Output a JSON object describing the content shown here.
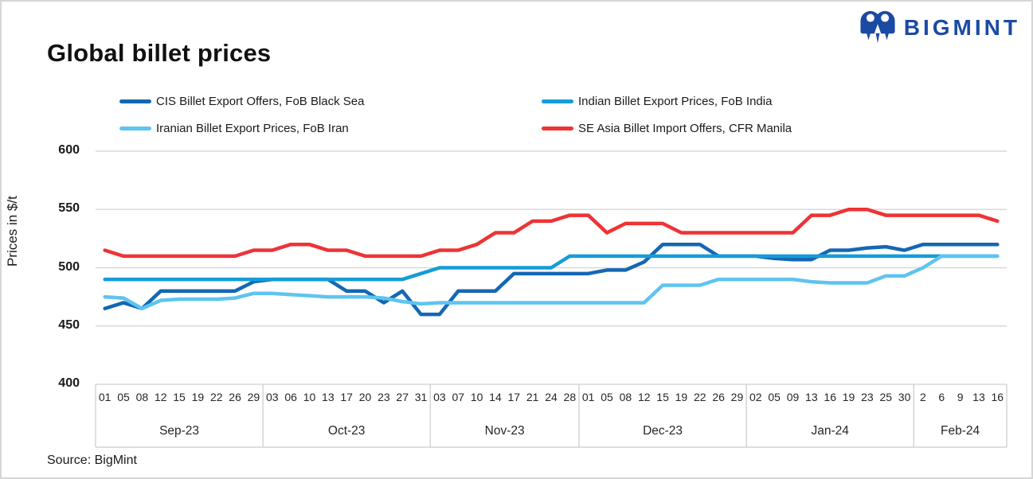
{
  "header": {
    "title": "Global billet prices",
    "logo_text": "BIGMINT"
  },
  "source": "Source: BigMint",
  "colors": {
    "logo_blue": "#1b4aa3",
    "grid": "#d9d9d9",
    "table_border": "#c9c9c9",
    "text": "#1a1a1a"
  },
  "chart_data": {
    "type": "line",
    "title": "Global billet prices",
    "ylabel": "Prices in $/t",
    "xlabel": "",
    "ylim": [
      400,
      600
    ],
    "y_ticks": [
      600,
      550,
      500,
      450,
      400
    ],
    "grid": "horizontal",
    "legend_position": "top",
    "x_groups": [
      {
        "label": "Sep-23",
        "days": [
          "01",
          "05",
          "08",
          "12",
          "15",
          "19",
          "22",
          "26",
          "29"
        ]
      },
      {
        "label": "Oct-23",
        "days": [
          "03",
          "06",
          "10",
          "13",
          "17",
          "20",
          "23",
          "27",
          "31"
        ]
      },
      {
        "label": "Nov-23",
        "days": [
          "03",
          "07",
          "10",
          "14",
          "17",
          "21",
          "24",
          "28"
        ]
      },
      {
        "label": "Dec-23",
        "days": [
          "01",
          "05",
          "08",
          "12",
          "15",
          "19",
          "22",
          "26",
          "29"
        ]
      },
      {
        "label": "Jan-24",
        "days": [
          "02",
          "05",
          "09",
          "13",
          "16",
          "19",
          "23",
          "25",
          "30"
        ]
      },
      {
        "label": "Feb-24",
        "days": [
          "2",
          "6",
          "9",
          "13",
          "16"
        ]
      }
    ],
    "series": [
      {
        "name": "CIS Billet Export Offers, FoB Black Sea",
        "color": "#1467b3",
        "values": [
          465,
          470,
          465,
          480,
          480,
          480,
          480,
          480,
          488,
          490,
          490,
          490,
          490,
          480,
          480,
          470,
          480,
          460,
          460,
          480,
          480,
          480,
          495,
          495,
          495,
          495,
          495,
          498,
          498,
          505,
          520,
          520,
          520,
          510,
          510,
          510,
          508,
          507,
          507,
          515,
          515,
          517,
          518,
          515,
          520,
          520,
          520,
          520,
          520
        ]
      },
      {
        "name": "Indian Billet Export Prices, FoB India",
        "color": "#169cd8",
        "values": [
          490,
          490,
          490,
          490,
          490,
          490,
          490,
          490,
          490,
          490,
          490,
          490,
          490,
          490,
          490,
          490,
          490,
          495,
          500,
          500,
          500,
          500,
          500,
          500,
          500,
          510,
          510,
          510,
          510,
          510,
          510,
          510,
          510,
          510,
          510,
          510,
          510,
          510,
          510,
          510,
          510,
          510,
          510,
          510,
          510,
          510,
          510,
          510,
          510
        ]
      },
      {
        "name": "Iranian Billet Export Prices, FoB Iran",
        "color": "#5ec4f0",
        "values": [
          475,
          474,
          465,
          472,
          473,
          473,
          473,
          474,
          478,
          478,
          477,
          476,
          475,
          475,
          475,
          474,
          471,
          469,
          470,
          470,
          470,
          470,
          470,
          470,
          470,
          470,
          470,
          470,
          470,
          470,
          485,
          485,
          485,
          490,
          490,
          490,
          490,
          490,
          488,
          487,
          487,
          487,
          493,
          493,
          500,
          510,
          510,
          510,
          510
        ]
      },
      {
        "name": "SE Asia Billet Import Offers, CFR Manila",
        "color": "#ee3335",
        "values": [
          515,
          510,
          510,
          510,
          510,
          510,
          510,
          510,
          515,
          515,
          520,
          520,
          515,
          515,
          510,
          510,
          510,
          510,
          515,
          515,
          520,
          530,
          530,
          540,
          540,
          545,
          545,
          530,
          538,
          538,
          538,
          530,
          530,
          530,
          530,
          530,
          530,
          530,
          545,
          545,
          550,
          550,
          545,
          545,
          545,
          545,
          545,
          545,
          540
        ]
      }
    ]
  }
}
